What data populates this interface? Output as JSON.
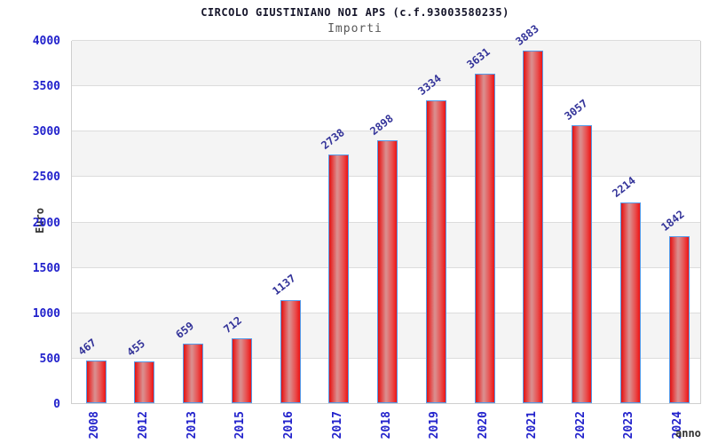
{
  "header": {
    "title": "CIRCOLO GIUSTINIANO NOI APS (c.f.93003580235)",
    "subtitle": "Importi"
  },
  "chart_data": {
    "type": "bar",
    "title": "CIRCOLO GIUSTINIANO NOI APS (c.f.93003580235)",
    "subtitle": "Importi",
    "xlabel": "anno",
    "ylabel": "Euro",
    "categories": [
      "2008",
      "2012",
      "2013",
      "2015",
      "2016",
      "2017",
      "2018",
      "2019",
      "2020",
      "2021",
      "2022",
      "2023",
      "2024"
    ],
    "values": [
      467,
      455,
      659,
      712,
      1137,
      2738,
      2898,
      3334,
      3631,
      3883,
      3057,
      2214,
      1842
    ],
    "ylim": [
      0,
      4000
    ],
    "ytick_step": 500,
    "yticks": [
      0,
      500,
      1000,
      1500,
      2000,
      2500,
      3000,
      3500,
      4000
    ],
    "grid": "horizontal gridlines with alternating shaded bands",
    "legend_position": "none",
    "colors": {
      "bar_edge": "#df1212",
      "bar_center": "#d99090",
      "bar_border": "#559ae8",
      "tick_label": "#2222cc",
      "value_label": "#333399",
      "title": "#15152a",
      "subtitle": "#585858",
      "axis_title": "#333333",
      "band": "#f4f4f4",
      "gridline": "#dcdcdc",
      "background": "#ffffff"
    }
  }
}
